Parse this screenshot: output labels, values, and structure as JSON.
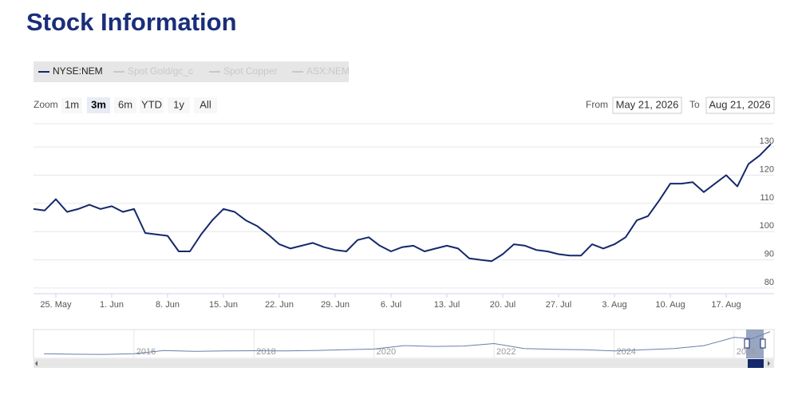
{
  "chart_data": {
    "type": "line",
    "title": "Stock Information",
    "legend": [
      "NYSE:NEM",
      "Spot Gold/gc_c",
      "Spot Copper",
      "ASX:NEM"
    ],
    "legend_active": "NYSE:NEM",
    "range_selector": {
      "label": "Zoom",
      "buttons": [
        "1m",
        "3m",
        "6m",
        "YTD",
        "1y",
        "All"
      ],
      "selected": "3m",
      "from_label": "From",
      "from": "May 21, 2026",
      "to_label": "To",
      "to": "Aug 21, 2026"
    },
    "categories": [
      "2026-05-21",
      "2026-05-22",
      "2026-05-25",
      "2026-05-26",
      "2026-05-27",
      "2026-05-28",
      "2026-05-29",
      "2026-06-01",
      "2026-06-02",
      "2026-06-03",
      "2026-06-04",
      "2026-06-05",
      "2026-06-08",
      "2026-06-09",
      "2026-06-10",
      "2026-06-11",
      "2026-06-12",
      "2026-06-15",
      "2026-06-16",
      "2026-06-17",
      "2026-06-18",
      "2026-06-19",
      "2026-06-22",
      "2026-06-23",
      "2026-06-24",
      "2026-06-25",
      "2026-06-26",
      "2026-06-29",
      "2026-06-30",
      "2026-07-01",
      "2026-07-02",
      "2026-07-03",
      "2026-07-06",
      "2026-07-07",
      "2026-07-08",
      "2026-07-09",
      "2026-07-10",
      "2026-07-13",
      "2026-07-14",
      "2026-07-15",
      "2026-07-16",
      "2026-07-17",
      "2026-07-20",
      "2026-07-21",
      "2026-07-22",
      "2026-07-23",
      "2026-07-24",
      "2026-07-27",
      "2026-07-28",
      "2026-07-29",
      "2026-07-30",
      "2026-07-31",
      "2026-08-03",
      "2026-08-04",
      "2026-08-05",
      "2026-08-06",
      "2026-08-07",
      "2026-08-10",
      "2026-08-11",
      "2026-08-12",
      "2026-08-13",
      "2026-08-14",
      "2026-08-17",
      "2026-08-18",
      "2026-08-19",
      "2026-08-20",
      "2026-08-21"
    ],
    "series": [
      {
        "name": "NYSE:NEM",
        "color": "#14296b",
        "values": [
          108,
          107.5,
          111.5,
          107,
          108,
          109.5,
          108,
          109,
          107,
          108,
          99.5,
          99,
          98.5,
          93,
          93,
          99,
          104,
          108,
          107,
          104,
          102,
          99,
          95.5,
          94,
          95,
          96,
          94.5,
          93.5,
          93,
          97,
          98,
          95,
          93,
          94.5,
          95,
          93,
          94,
          95,
          94,
          90.5,
          90,
          89.5,
          92,
          95.5,
          95,
          93.5,
          93,
          92,
          91.5,
          91.5,
          95.5,
          94,
          95.5,
          98,
          104,
          105.5,
          111,
          117,
          117,
          117.5,
          114,
          117,
          120,
          116,
          124,
          127,
          131
        ]
      }
    ],
    "xticks": [
      {
        "value": "2026-05-25",
        "label": "25. May"
      },
      {
        "value": "2026-06-01",
        "label": "1. Jun"
      },
      {
        "value": "2026-06-08",
        "label": "8. Jun"
      },
      {
        "value": "2026-06-15",
        "label": "15. Jun"
      },
      {
        "value": "2026-06-22",
        "label": "22. Jun"
      },
      {
        "value": "2026-06-29",
        "label": "29. Jun"
      },
      {
        "value": "2026-07-06",
        "label": "6. Jul"
      },
      {
        "value": "2026-07-13",
        "label": "13. Jul"
      },
      {
        "value": "2026-07-20",
        "label": "20. Jul"
      },
      {
        "value": "2026-07-27",
        "label": "27. Jul"
      },
      {
        "value": "2026-08-03",
        "label": "3. Aug"
      },
      {
        "value": "2026-08-10",
        "label": "10. Aug"
      },
      {
        "value": "2026-08-17",
        "label": "17. Aug"
      }
    ],
    "ylim": [
      78,
      134
    ],
    "yticks": [
      80,
      90,
      100,
      110,
      120,
      130
    ],
    "grid": true,
    "navigator": {
      "x": [
        2014.5,
        2015,
        2015.5,
        2016,
        2016.5,
        2017,
        2017.5,
        2018,
        2018.5,
        2019,
        2019.5,
        2020,
        2020.5,
        2021,
        2021.5,
        2022,
        2022.5,
        2023,
        2023.5,
        2024,
        2024.5,
        2025,
        2025.5,
        2026,
        2026.3,
        2026.6
      ],
      "values": [
        22,
        20,
        19,
        22,
        38,
        34,
        36,
        37,
        36,
        38,
        42,
        45,
        62,
        58,
        60,
        72,
        48,
        44,
        42,
        36,
        42,
        48,
        62,
        102,
        96,
        130
      ],
      "xlim": [
        2014.5,
        2026.6
      ],
      "ylim": [
        0,
        140
      ],
      "xticks": [
        2016,
        2018,
        2020,
        2022,
        2024,
        2026
      ],
      "color": "#6a7fa8"
    }
  }
}
